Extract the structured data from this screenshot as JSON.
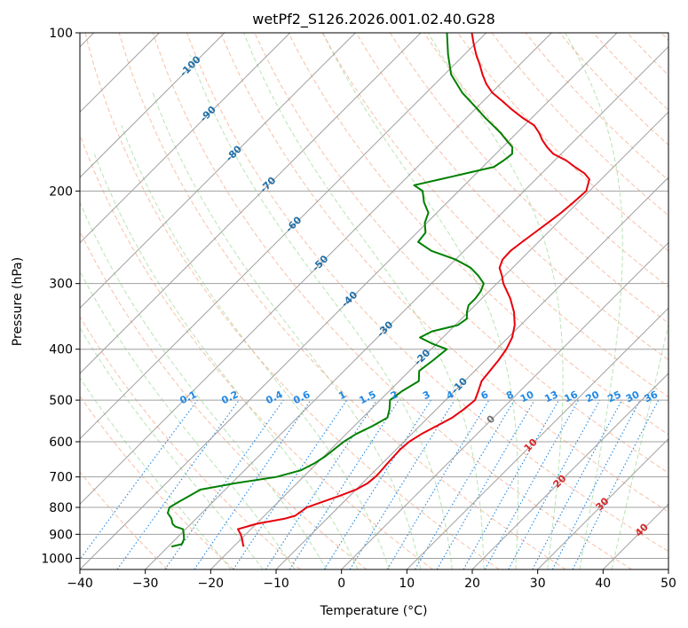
{
  "chart_data": {
    "type": "line",
    "chart_kind": "skew-T log-P diagram",
    "title": "wetPf2_S126.2026.001.02.40.G28",
    "xlabel": "Temperature (°C)",
    "ylabel": "Pressure (hPa)",
    "xlim": [
      -40,
      50
    ],
    "ylim": [
      1050,
      100
    ],
    "y_scale": "log",
    "grid": true,
    "x_ticks": [
      -40,
      -30,
      -20,
      -10,
      0,
      10,
      20,
      30,
      40,
      50
    ],
    "x_tick_labels": [
      "−40",
      "−30",
      "−20",
      "−10",
      "0",
      "10",
      "20",
      "30",
      "40",
      "50"
    ],
    "y_ticks": [
      1000,
      900,
      800,
      700,
      600,
      500,
      400,
      300,
      200,
      100
    ],
    "y_tick_labels": [
      "1000",
      "900",
      "800",
      "700",
      "600",
      "500",
      "400",
      "300",
      "200",
      "100"
    ],
    "colors": {
      "temperature": "#e8000b",
      "dewpoint": "#008000",
      "isotherm": "#a0a0a0",
      "dry_adiabat": "#f4a582",
      "moist_adiabat": "#a1d99b",
      "mixing_ratio": "#1f88e5",
      "isotherm_label": "#1f6fa8",
      "dry_adiabat_label": "#d62728"
    },
    "isotherm_labels": [
      {
        "value": -100,
        "p": 116
      },
      {
        "value": -90,
        "p": 143
      },
      {
        "value": -80,
        "p": 170
      },
      {
        "value": -70,
        "p": 195
      },
      {
        "value": -60,
        "p": 232
      },
      {
        "value": -50,
        "p": 275
      },
      {
        "value": -40,
        "p": 322
      },
      {
        "value": -30,
        "p": 367
      },
      {
        "value": -20,
        "p": 415
      },
      {
        "value": -10,
        "p": 470
      },
      {
        "value": 0,
        "p": 545
      }
    ],
    "isotherm_label_text": [
      "-100",
      "-90",
      "-80",
      "-70",
      "-60",
      "-50",
      "-40",
      "-30",
      "-20",
      "-10",
      "0"
    ],
    "dry_adiabat_labels": [
      {
        "value": 10,
        "p": 610
      },
      {
        "value": 20,
        "p": 715
      },
      {
        "value": 30,
        "p": 790
      },
      {
        "value": 40,
        "p": 885
      }
    ],
    "dry_adiabat_label_text": [
      "10",
      "20",
      "30",
      "40"
    ],
    "mixing_ratio_lines": [
      0.1,
      0.2,
      0.4,
      0.6,
      1,
      1.5,
      2,
      3,
      4,
      6,
      8,
      10,
      13,
      16,
      20,
      25,
      30,
      36
    ],
    "mixing_ratio_label_text": [
      "0.1",
      "0.2",
      "0.4",
      "0.6",
      "1",
      "1.5",
      "2",
      "3",
      "4",
      "6",
      "8",
      "10",
      "13",
      "16",
      "20",
      "25",
      "30",
      "36"
    ],
    "series": [
      {
        "name": "temperature",
        "p": [
          950,
          920,
          900,
          880,
          860,
          840,
          830,
          800,
          780,
          760,
          740,
          720,
          700,
          690,
          660,
          640,
          620,
          600,
          580,
          560,
          540,
          520,
          500,
          480,
          460,
          440,
          420,
          400,
          380,
          360,
          340,
          320,
          300,
          290,
          280,
          270,
          260,
          250,
          240,
          230,
          220,
          210,
          200,
          190,
          185,
          180,
          175,
          170,
          165,
          160,
          155,
          150,
          145,
          140,
          135,
          130,
          125,
          120,
          115,
          110,
          105,
          100
        ],
        "t": [
          -18.5,
          -19.8,
          -20.8,
          -22.0,
          -20.0,
          -16.4,
          -15.3,
          -14.8,
          -13.2,
          -11.5,
          -10.0,
          -9.2,
          -9.0,
          -9.0,
          -9.2,
          -9.3,
          -9.4,
          -9.2,
          -8.5,
          -7.4,
          -6.3,
          -5.8,
          -5.5,
          -6.4,
          -7.4,
          -7.7,
          -8.0,
          -8.5,
          -9.4,
          -10.9,
          -13.0,
          -15.7,
          -19.0,
          -20.4,
          -22.0,
          -22.8,
          -22.9,
          -22.5,
          -22.0,
          -21.5,
          -21.0,
          -20.7,
          -20.5,
          -21.8,
          -23.5,
          -25.9,
          -28.2,
          -31.2,
          -33.2,
          -35.0,
          -36.6,
          -38.5,
          -41.5,
          -44.3,
          -47.0,
          -49.9,
          -52.2,
          -54.2,
          -56.1,
          -58.2,
          -60.2,
          -62.2
        ]
      },
      {
        "name": "dewpoint",
        "p": [
          950,
          940,
          920,
          900,
          880,
          870,
          860,
          840,
          820,
          800,
          780,
          760,
          740,
          720,
          700,
          680,
          660,
          640,
          620,
          600,
          580,
          560,
          540,
          520,
          500,
          480,
          460,
          440,
          420,
          400,
          390,
          380,
          370,
          360,
          350,
          340,
          330,
          320,
          310,
          300,
          290,
          280,
          270,
          260,
          250,
          240,
          230,
          220,
          210,
          200,
          195,
          190,
          185,
          180,
          175,
          170,
          165,
          160,
          155,
          150,
          145,
          140,
          130,
          120,
          110,
          100
        ],
        "t": [
          -29.5,
          -28.3,
          -28.7,
          -29.5,
          -30.4,
          -32.0,
          -32.8,
          -33.8,
          -35.2,
          -35.8,
          -35.2,
          -34.5,
          -33.8,
          -29.5,
          -24.1,
          -21.4,
          -20.4,
          -19.8,
          -19.5,
          -19.2,
          -18.5,
          -17.2,
          -16.2,
          -17.2,
          -18.5,
          -18.0,
          -17.0,
          -18.5,
          -18.0,
          -17.6,
          -20.8,
          -23.5,
          -22.6,
          -19.6,
          -19.2,
          -20.2,
          -21.0,
          -21.0,
          -21.3,
          -22.0,
          -24.0,
          -26.4,
          -30.0,
          -35.0,
          -38.4,
          -38.7,
          -40.3,
          -41.3,
          -43.6,
          -45.5,
          -47.7,
          -44.6,
          -41.5,
          -38.3,
          -37.8,
          -37.5,
          -38.5,
          -40.5,
          -42.5,
          -44.8,
          -47.2,
          -49.5,
          -54.5,
          -59.0,
          -62.5,
          -66.0
        ]
      }
    ]
  }
}
